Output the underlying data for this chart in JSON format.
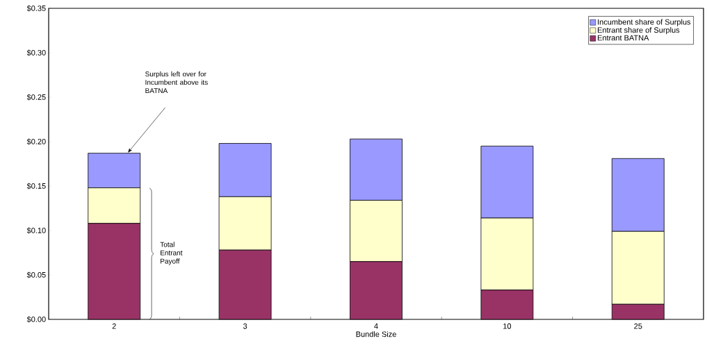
{
  "chart_data": {
    "type": "bar",
    "stacked": true,
    "xlabel": "Bundle Size",
    "categories": [
      "2",
      "3",
      "4",
      "10",
      "25"
    ],
    "series": [
      {
        "name": "Entrant BATNA",
        "color": "#993366",
        "values": [
          0.108,
          0.078,
          0.065,
          0.033,
          0.017
        ]
      },
      {
        "name": "Entrant share of Surplus",
        "color": "#ffffcc",
        "values": [
          0.04,
          0.06,
          0.069,
          0.081,
          0.082
        ]
      },
      {
        "name": "Incumbent share of Surplus",
        "color": "#9999ff",
        "values": [
          0.039,
          0.06,
          0.069,
          0.081,
          0.082
        ]
      }
    ],
    "ylim": [
      0,
      0.35
    ],
    "yticks": [
      {
        "value": 0,
        "label": "$0.00"
      },
      {
        "value": 0.05,
        "label": "$0.05"
      },
      {
        "value": 0.1,
        "label": "$0.10"
      },
      {
        "value": 0.15,
        "label": "$0.15"
      },
      {
        "value": 0.2,
        "label": "$0.20"
      },
      {
        "value": 0.25,
        "label": "$0.25"
      },
      {
        "value": 0.3,
        "label": "$0.30"
      },
      {
        "value": 0.35,
        "label": "$0.35"
      }
    ],
    "legend": "top right",
    "grid": false,
    "annotations": [
      "Surplus left over for Incumbent above its BATNA",
      "Total Entrant Payoff"
    ]
  }
}
